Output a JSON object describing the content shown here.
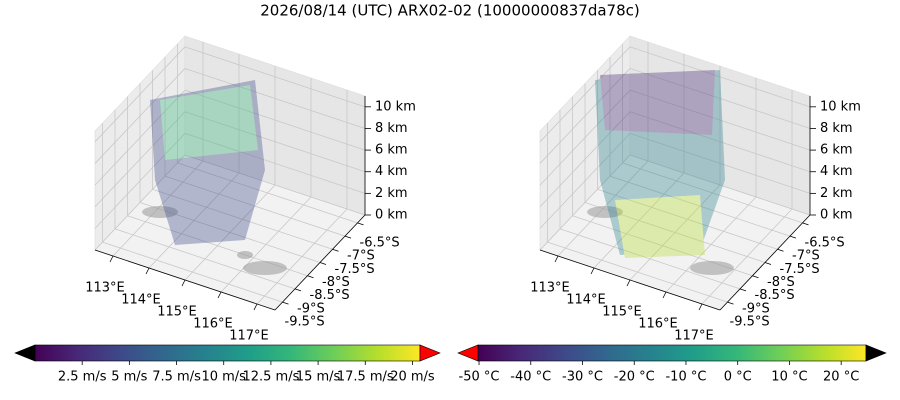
{
  "title": "2026/08/14 (UTC) ARX02-02 (10000000837da78c)",
  "chart_data": [
    {
      "type": "quiver3d",
      "xlim": [
        112.5,
        117.5
      ],
      "xticks": [
        {
          "value": 113,
          "label": "113°E"
        },
        {
          "value": 114,
          "label": "114°E"
        },
        {
          "value": 115,
          "label": "115°E"
        },
        {
          "value": 116,
          "label": "116°E"
        },
        {
          "value": 117,
          "label": "117°E"
        }
      ],
      "ylim": [
        -9.8,
        -6.2
      ],
      "yticks": [
        {
          "value": -6.5,
          "label": "-6.5°S"
        },
        {
          "value": -7,
          "label": "-7°S"
        },
        {
          "value": -7.5,
          "label": "-7.5°S"
        },
        {
          "value": -8,
          "label": "-8°S"
        },
        {
          "value": -8.5,
          "label": "-8.5°S"
        },
        {
          "value": -9,
          "label": "-9°S"
        },
        {
          "value": -9.5,
          "label": "-9.5°S"
        }
      ],
      "zlim": [
        0,
        11
      ],
      "zticks": [
        {
          "value": 0,
          "label": "0 km"
        },
        {
          "value": 2,
          "label": "2 km"
        },
        {
          "value": 4,
          "label": "4 km"
        },
        {
          "value": 6,
          "label": "6 km"
        },
        {
          "value": 8,
          "label": "8 km"
        },
        {
          "value": 10,
          "label": "10 km"
        }
      ],
      "grid": true,
      "colorbar": {
        "lim": [
          0,
          20.4
        ],
        "ticks": [
          {
            "value": 2.5,
            "label": "2.5 m/s"
          },
          {
            "value": 5,
            "label": "5 m/s"
          },
          {
            "value": 7.5,
            "label": "7.5 m/s"
          },
          {
            "value": 10,
            "label": "10 m/s"
          },
          {
            "value": 12.5,
            "label": "12.5 m/s"
          },
          {
            "value": 15,
            "label": "15 m/s"
          },
          {
            "value": 17.5,
            "label": "17.5 m/s"
          },
          {
            "value": 20,
            "label": "20 m/s"
          }
        ],
        "colormap": [
          "#440154",
          "#482878",
          "#3e4989",
          "#31688e",
          "#26828e",
          "#1f9e89",
          "#35b779",
          "#6ece58",
          "#b5de2b",
          "#fde725"
        ],
        "extend_colors": {
          "min": "#000000",
          "max": "#ff0000"
        }
      }
    },
    {
      "type": "voxel3d",
      "xlim": [
        112.5,
        117.5
      ],
      "xticks": [
        {
          "value": 113,
          "label": "113°E"
        },
        {
          "value": 114,
          "label": "114°E"
        },
        {
          "value": 115,
          "label": "115°E"
        },
        {
          "value": 116,
          "label": "116°E"
        },
        {
          "value": 117,
          "label": "117°E"
        }
      ],
      "ylim": [
        -9.8,
        -6.2
      ],
      "yticks": [
        {
          "value": -6.5,
          "label": "-6.5°S"
        },
        {
          "value": -7,
          "label": "-7°S"
        },
        {
          "value": -7.5,
          "label": "-7.5°S"
        },
        {
          "value": -8,
          "label": "-8°S"
        },
        {
          "value": -8.5,
          "label": "-8.5°S"
        },
        {
          "value": -9,
          "label": "-9°S"
        },
        {
          "value": -9.5,
          "label": "-9.5°S"
        }
      ],
      "zlim": [
        0,
        11
      ],
      "zticks": [
        {
          "value": 0,
          "label": "0 km"
        },
        {
          "value": 2,
          "label": "2 km"
        },
        {
          "value": 4,
          "label": "4 km"
        },
        {
          "value": 6,
          "label": "6 km"
        },
        {
          "value": 8,
          "label": "8 km"
        },
        {
          "value": 10,
          "label": "10 km"
        }
      ],
      "grid": true,
      "colorbar": {
        "lim": [
          -50.2,
          24.8
        ],
        "ticks": [
          {
            "value": -50,
            "label": "-50 °C"
          },
          {
            "value": -40,
            "label": "-40 °C"
          },
          {
            "value": -30,
            "label": "-30 °C"
          },
          {
            "value": -20,
            "label": "-20 °C"
          },
          {
            "value": -10,
            "label": "-10 °C"
          },
          {
            "value": 0,
            "label": "0 °C"
          },
          {
            "value": 10,
            "label": "10 °C"
          },
          {
            "value": 20,
            "label": "20 °C"
          }
        ],
        "colormap": [
          "#440154",
          "#482878",
          "#3e4989",
          "#31688e",
          "#26828e",
          "#1f9e89",
          "#35b779",
          "#6ece58",
          "#b5de2b",
          "#fde725"
        ],
        "extend_colors": {
          "min": "#ff0000",
          "max": "#000000"
        }
      }
    }
  ]
}
